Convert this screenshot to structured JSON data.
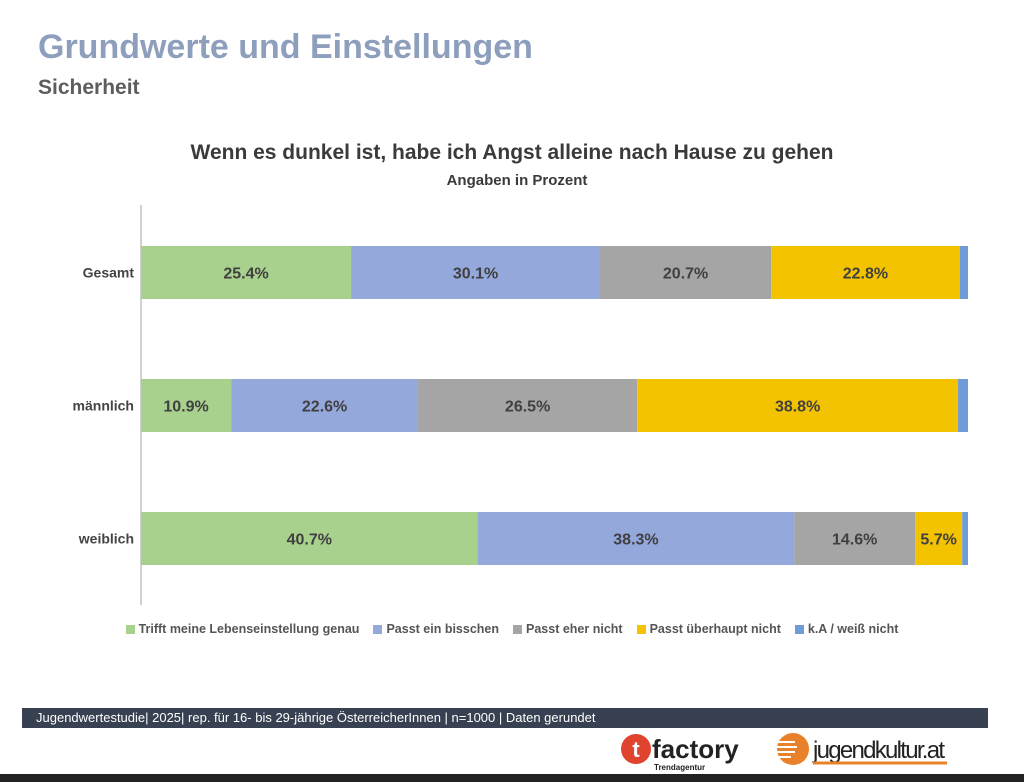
{
  "header": {
    "title": "Grundwerte und Einstellungen",
    "subtitle": "Sicherheit"
  },
  "chart_data": {
    "type": "bar",
    "orientation": "horizontal",
    "stacked": true,
    "title": "Wenn es dunkel ist, habe ich Angst alleine nach Hause zu gehen",
    "subtitle": "Angaben in Prozent",
    "categories": [
      "Gesamt",
      "männlich",
      "weiblich"
    ],
    "xlim": [
      0,
      100
    ],
    "grid": false,
    "legend_position": "bottom",
    "series": [
      {
        "name": "Trifft meine Lebenseinstellung genau",
        "color": "#a9d18e",
        "values": [
          25.4,
          10.9,
          40.7
        ],
        "labels": [
          "25.4%",
          "10.9%",
          "40.7%"
        ]
      },
      {
        "name": "Passt ein bisschen",
        "color": "#95a8dc",
        "values": [
          30.1,
          22.6,
          38.3
        ],
        "labels": [
          "30.1%",
          "22.6%",
          "38.3%"
        ]
      },
      {
        "name": "Passt eher nicht",
        "color": "#a5a5a5",
        "values": [
          20.7,
          26.5,
          14.6
        ],
        "labels": [
          "20.7%",
          "26.5%",
          "14.6%"
        ]
      },
      {
        "name": "Passt überhaupt nicht",
        "color": "#f4c300",
        "values": [
          22.8,
          38.8,
          5.7
        ],
        "labels": [
          "22.8%",
          "38.8%",
          "5.7%"
        ]
      },
      {
        "name": "k.A / weiß nicht",
        "color": "#6f9bd8",
        "values": [
          1.0,
          1.2,
          0.7
        ],
        "labels": [
          "",
          "",
          ""
        ]
      }
    ]
  },
  "footer": {
    "text": "Jugendwertestudie| 2025| rep. für 16- bis 29-jährige ÖsterreicherInnen | n=1000 | Daten gerundet"
  },
  "logos": {
    "tfactory": "tfactory",
    "tfactory_sub": "Trendagentur",
    "jugendkultur": "jugendkultur.at"
  }
}
